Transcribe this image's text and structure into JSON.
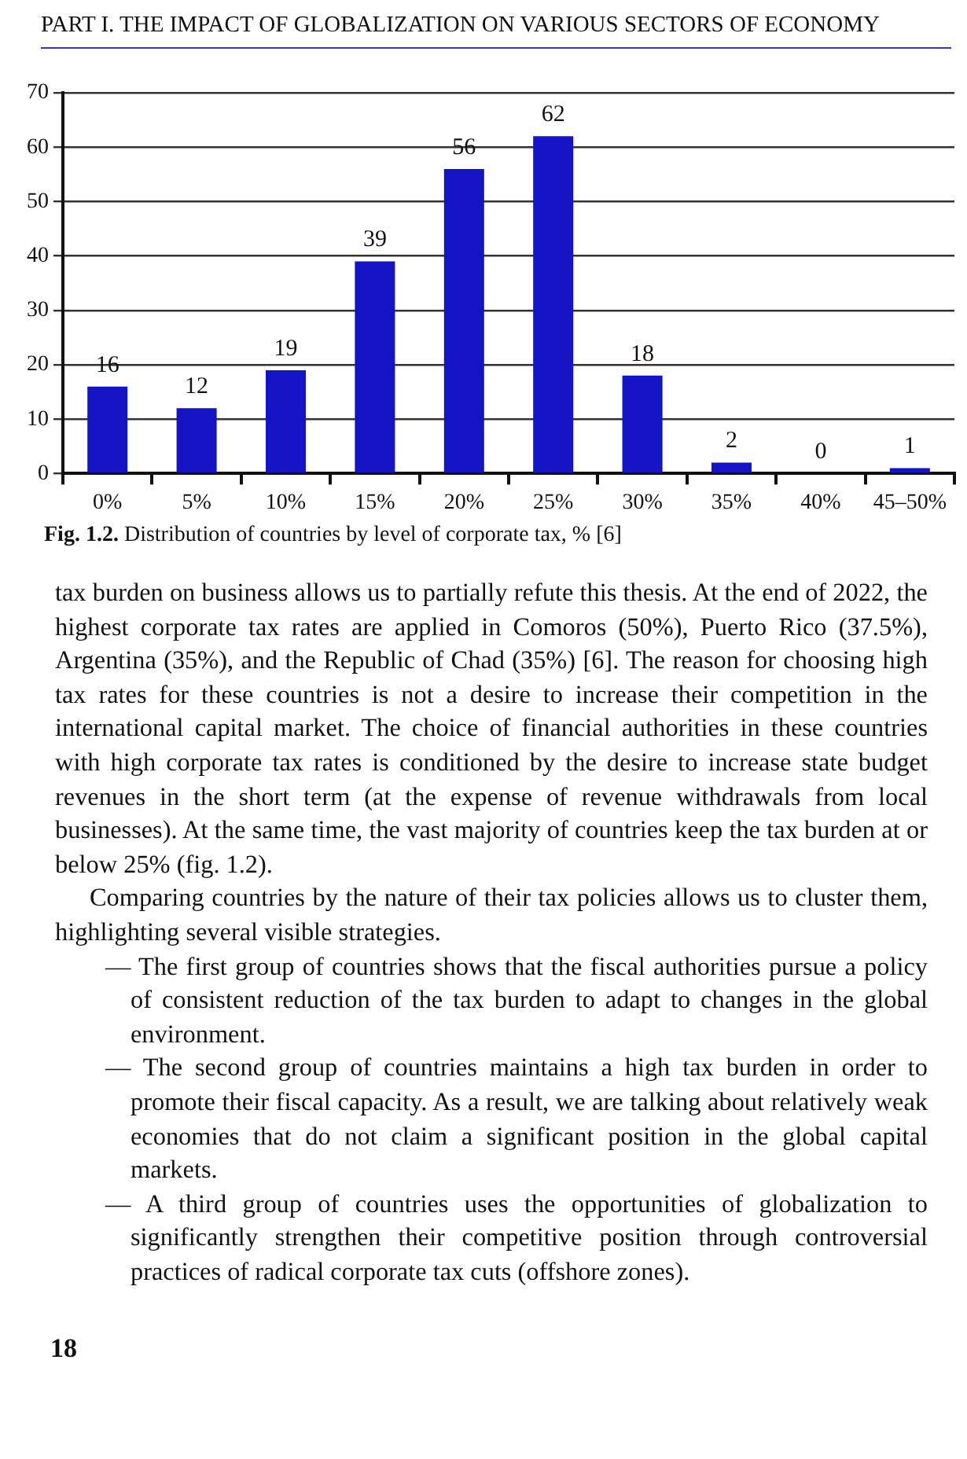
{
  "chart_data": {
    "type": "bar",
    "title": "Fig. 1.2. Distribution of countries by level of corporate tax, % [6]",
    "categories": [
      "0%",
      "5%",
      "10%",
      "15%",
      "20%",
      "25%",
      "30%",
      "35%",
      "40%",
      "45–50%"
    ],
    "values": [
      16,
      12,
      19,
      39,
      56,
      62,
      18,
      2,
      0,
      1
    ],
    "color": "#1414c4",
    "ylim": [
      0,
      70
    ],
    "yticks": [
      0,
      10,
      20,
      30,
      40,
      50,
      60,
      70
    ],
    "grid": "y",
    "data_labels": true,
    "annotations": [
      "PART I. THE IMPACT OF GLOBALIZATION ON VARIOUS SECTORS OF ECONOMY",
      "tax burden on business allows us to partially refute this thesis. At the end of 2022, the highest corporate tax rates are applied in Comoros (50%), Puerto Rico (37.5%), Argentina (35%), and the Republic of Chad (35%) [6]. The reason for choosing high tax rates for these countries is not a desire to increase their competition in the international capital market. The choice of financial authorities in these countries with high corporate tax rates is conditioned by the desire to increase state budget revenues in the short term (at the expense of revenue withdrawals from local businesses). At the same time, the vast majority of countries keep the tax burden at or below 25% (fig. 1.2).",
      "Comparing countries by the nature of their tax policies allows us to cluster them, highlighting several visible strategies.",
      "— The first group of countries shows that the fiscal authorities pursue a policy of consistent reduction of the tax burden to adapt to changes in the global environment.",
      "— The second group of countries maintains a high tax burden in order to promote their fiscal capacity. As a result, we are talking about relatively weak economies that do not claim a significant position in the global capital markets.",
      "— A third group of countries uses the opportunities of globalization to significantly strengthen their competitive position through controversial practices of radical corporate tax cuts (offshore zones).",
      "18"
    ]
  }
}
